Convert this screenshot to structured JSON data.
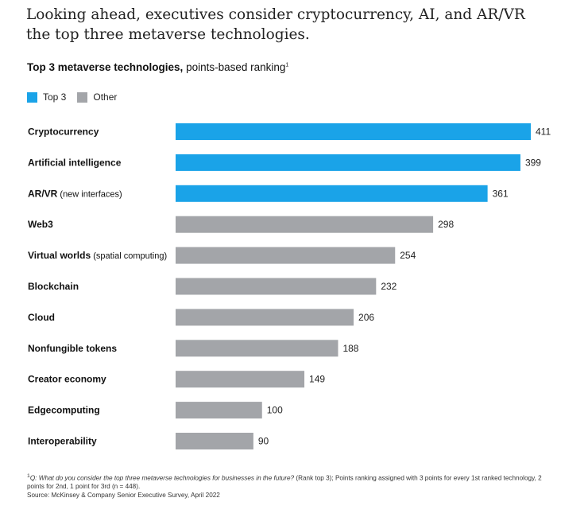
{
  "headline": "Looking ahead, executives consider cryptocurrency, AI, and AR/VR the top three metaverse technologies.",
  "subtitle": {
    "bold": "Top 3 metaverse technologies,",
    "rest": " points-based ranking",
    "marker": "1"
  },
  "colors": {
    "top3": "#1AA3E8",
    "other": "#A3A5A9"
  },
  "chart_data": {
    "type": "bar",
    "orientation": "horizontal",
    "title": "Top 3 metaverse technologies, points-based ranking",
    "xlabel": "",
    "ylabel": "",
    "xlim": [
      0,
      411
    ],
    "legend": [
      {
        "name": "Top 3",
        "color": "#1AA3E8"
      },
      {
        "name": "Other",
        "color": "#A3A5A9"
      }
    ],
    "categories": [
      {
        "label": "Cryptocurrency",
        "note": ""
      },
      {
        "label": "Artificial intelligence",
        "note": ""
      },
      {
        "label": "AR/VR",
        "note": " (new interfaces)"
      },
      {
        "label": "Web3",
        "note": ""
      },
      {
        "label": "Virtual worlds",
        "note": " (spatial computing)"
      },
      {
        "label": "Blockchain",
        "note": ""
      },
      {
        "label": "Cloud",
        "note": ""
      },
      {
        "label": "Nonfungible tokens",
        "note": ""
      },
      {
        "label": "Creator economy",
        "note": ""
      },
      {
        "label": "Edgecomputing",
        "note": ""
      },
      {
        "label": "Interoperability",
        "note": ""
      }
    ],
    "values": [
      411,
      399,
      361,
      298,
      254,
      232,
      206,
      188,
      149,
      100,
      90
    ],
    "group": [
      "Top 3",
      "Top 3",
      "Top 3",
      "Other",
      "Other",
      "Other",
      "Other",
      "Other",
      "Other",
      "Other",
      "Other"
    ]
  },
  "footnote": {
    "marker": "1",
    "question": "Q: What do you consider the top three metaverse technologies for businesses in the future?",
    "detail": " (Rank top 3); Points ranking assigned with 3 points for every 1st ranked technology, 2 points for 2nd, 1 point for 3rd (n = 448).",
    "source": "Source: McKinsey & Company Senior Executive Survey, April 2022"
  }
}
